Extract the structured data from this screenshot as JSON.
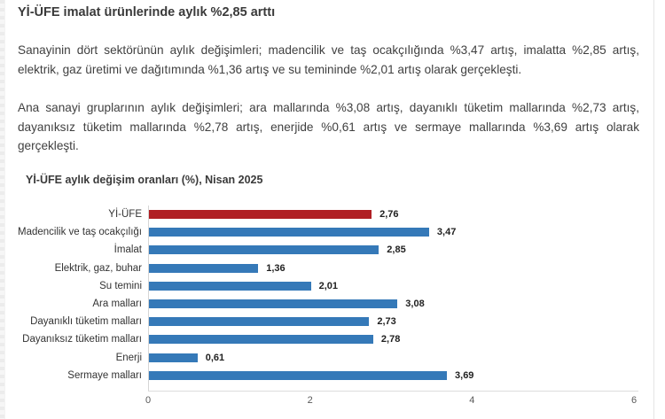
{
  "page": {
    "background": "#ffffff",
    "text_color": "#404040",
    "title": "Yİ-ÜFE imalat ürünlerinde aylık %2,85 arttı",
    "paragraphs": [
      "Sanayinin dört sektörünün aylık değişimleri; madencilik ve taş ocakçılığında %3,47 artış, imalatta %2,85 artış, elektrik, gaz üretimi ve dağıtımında %1,36 artış ve su temininde %2,01 artış olarak gerçekleşti.",
      "Ana sanayi gruplarının aylık değişimleri; ara mallarında %3,08 artış, dayanıklı tüketim mallarında %2,73 artış, dayanıksız tüketim mallarında %2,78 artış, enerjide %0,61 artış ve sermaye mallarında %3,69 artış olarak gerçekleşti."
    ]
  },
  "chart_data": {
    "type": "bar",
    "orientation": "horizontal",
    "title": "Yİ-ÜFE aylık değişim oranları (%), Nisan 2025",
    "categories": [
      "Yİ-ÜFE",
      "Madencilik ve taş ocakçılığı",
      "İmalat",
      "Elektrik, gaz, buhar",
      "Su temini",
      "Ara malları",
      "Dayanıklı tüketim malları",
      "Dayanıksız tüketim malları",
      "Enerji",
      "Sermaye malları"
    ],
    "values": [
      2.76,
      3.47,
      2.85,
      1.36,
      2.01,
      3.08,
      2.73,
      2.78,
      0.61,
      3.69
    ],
    "value_labels": [
      "2,76",
      "3,47",
      "2,85",
      "1,36",
      "2,01",
      "3,08",
      "2,73",
      "2,78",
      "0,61",
      "3,69"
    ],
    "highlight_index": 0,
    "colors": {
      "highlight": "#b01f24",
      "default": "#3579b8"
    },
    "xlim": [
      0,
      6
    ],
    "x_ticks": [
      0,
      2,
      4,
      6
    ],
    "x_tick_labels": [
      "0",
      "2",
      "4",
      "6"
    ],
    "grid": false,
    "legend": "none",
    "xlabel": "",
    "ylabel": ""
  }
}
